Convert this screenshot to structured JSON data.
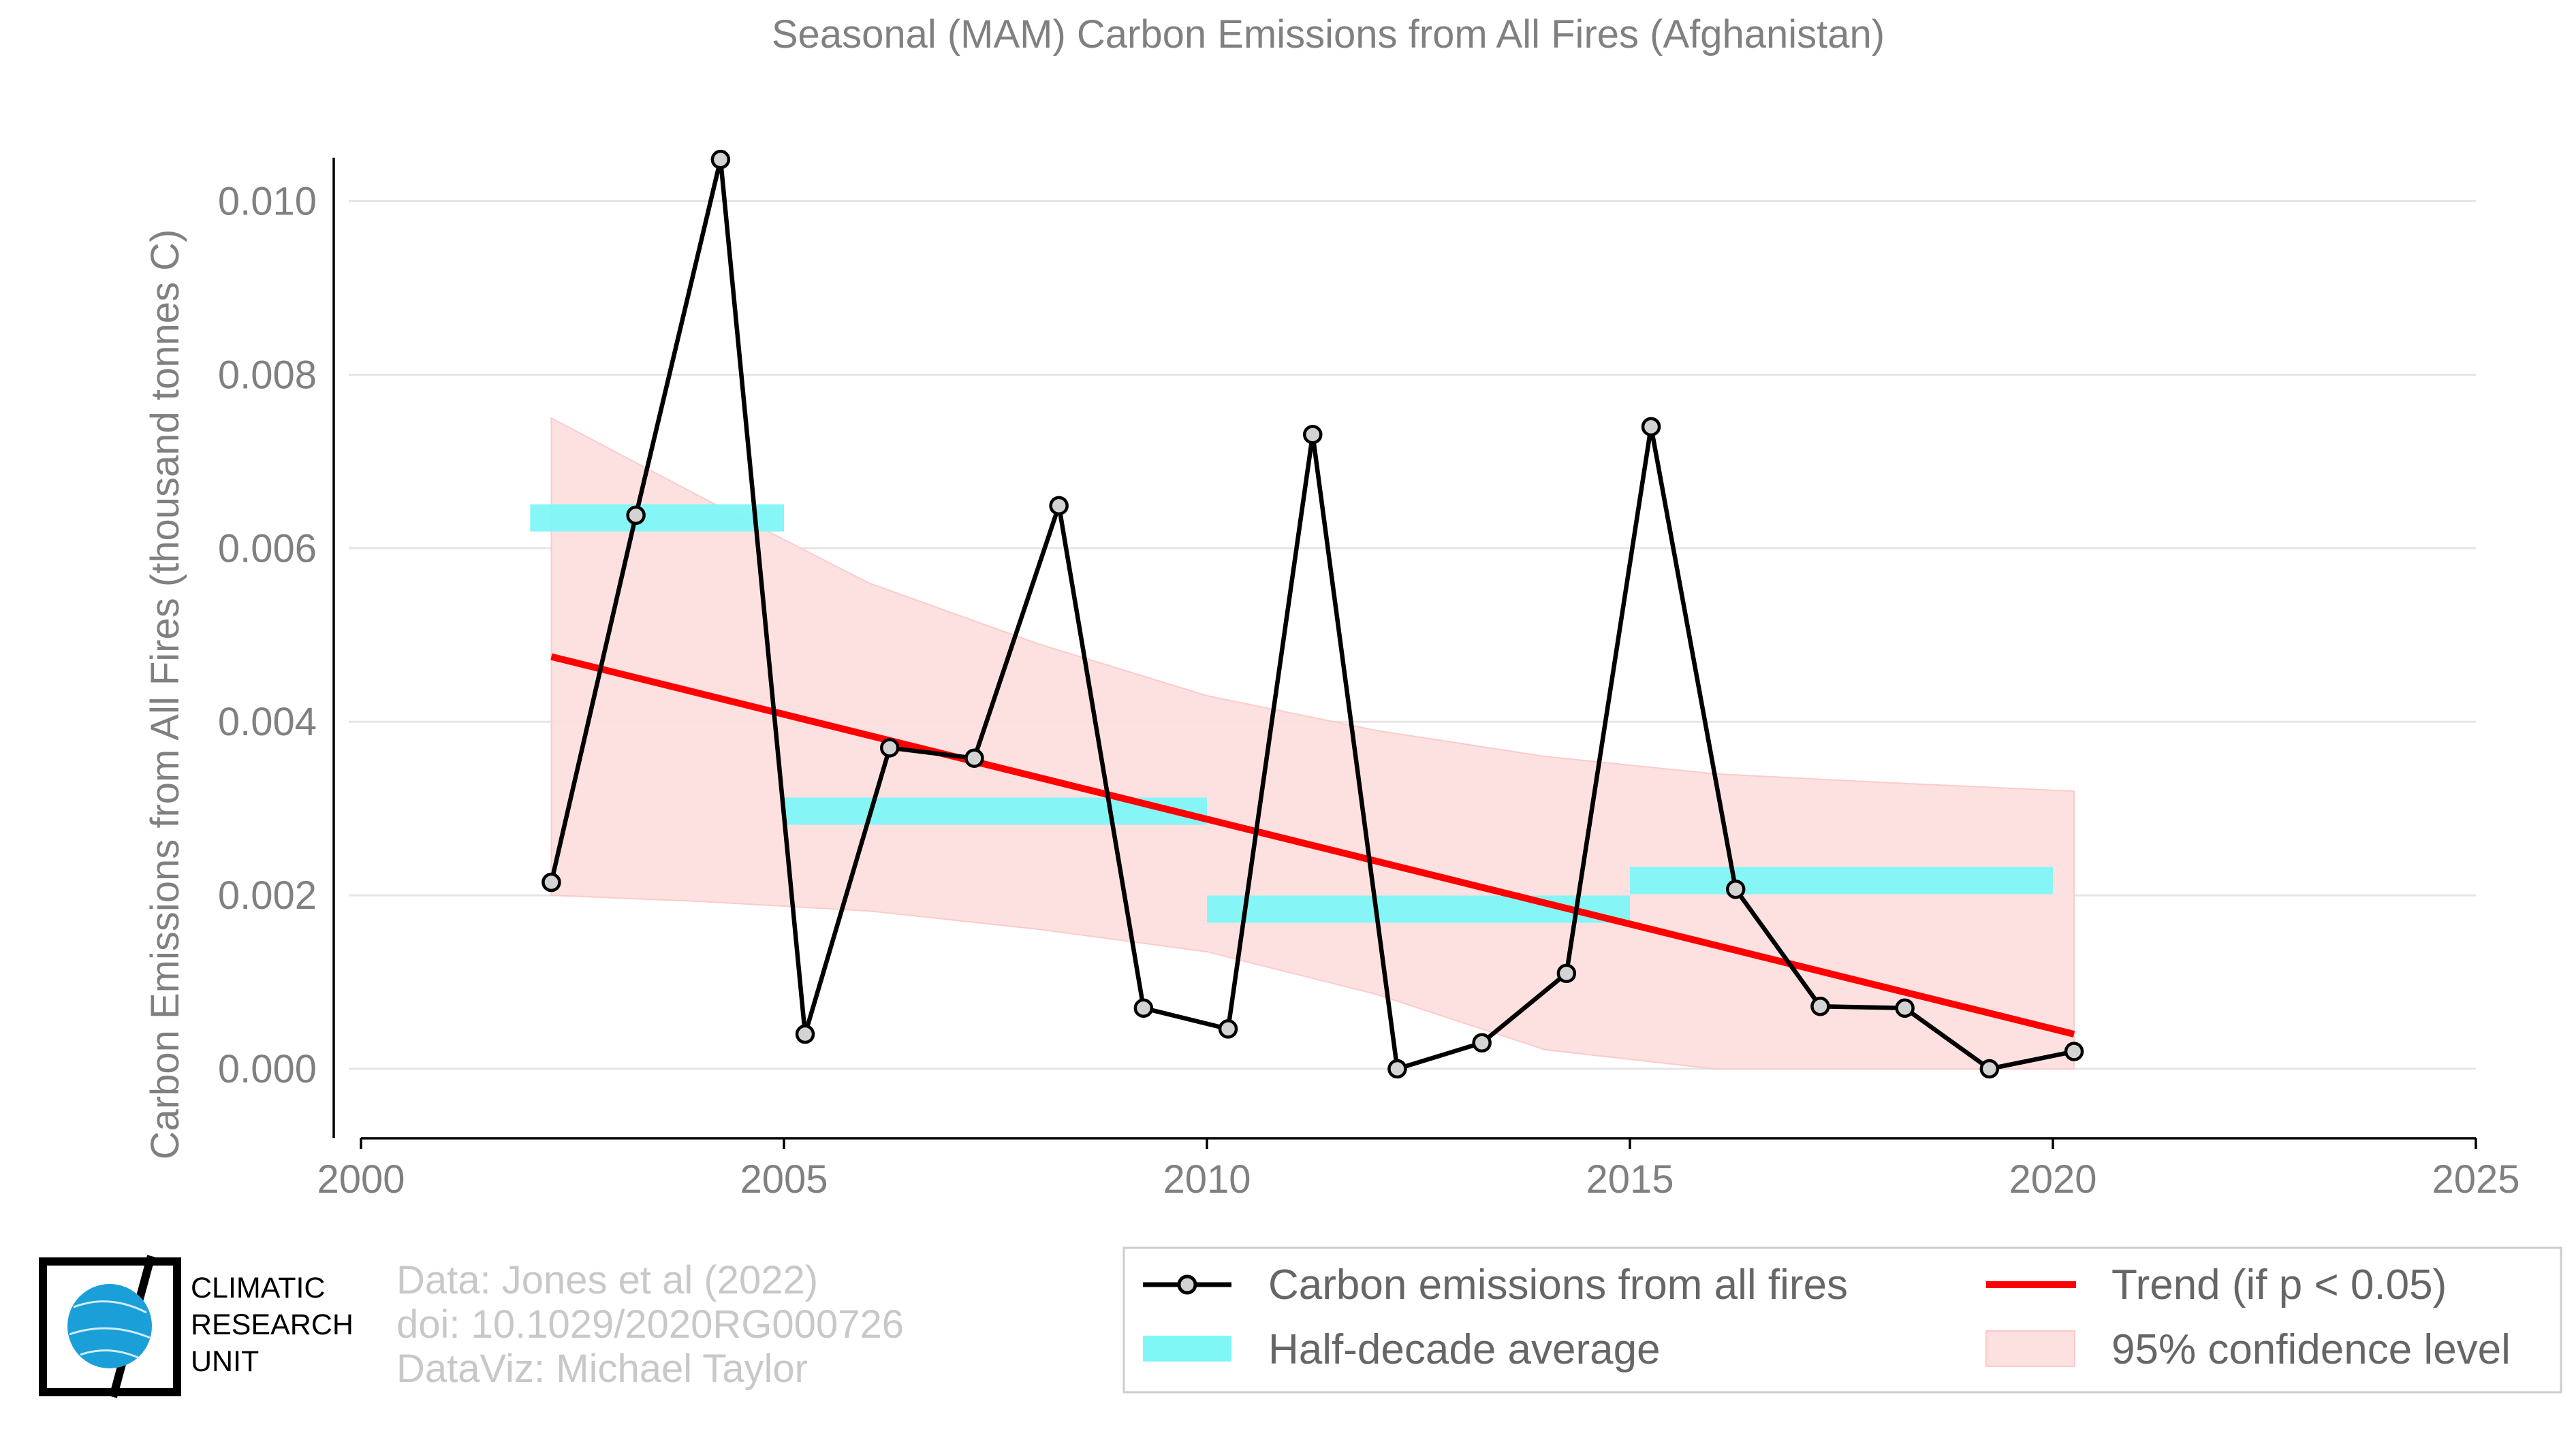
{
  "chart_data": {
    "type": "line",
    "title": "Seasonal (MAM) Carbon Emissions from All Fires (Afghanistan)",
    "ylabel": "Carbon Emissions from All Fires (thousand tonnes C)",
    "xlabel": "",
    "xlim": [
      2000,
      2025
    ],
    "ylim": [
      -0.0008,
      0.011
    ],
    "x_ticks": [
      2000,
      2005,
      2010,
      2015,
      2020,
      2025
    ],
    "y_ticks": [
      0.0,
      0.002,
      0.004,
      0.006,
      0.008,
      0.01
    ],
    "y_tick_labels": [
      "0.000",
      "0.002",
      "0.004",
      "0.006",
      "0.008",
      "0.010"
    ],
    "grid": "horizontal",
    "series": [
      {
        "name": "Carbon emissions from all fires",
        "color": "#000000",
        "x": [
          2002.25,
          2003.25,
          2004.25,
          2005.25,
          2006.25,
          2007.25,
          2008.25,
          2009.25,
          2010.25,
          2011.25,
          2012.25,
          2013.25,
          2014.25,
          2015.25,
          2016.25,
          2017.25,
          2018.25,
          2019.25,
          2020.25
        ],
        "values": [
          0.00215,
          0.00638,
          0.01048,
          0.0004,
          0.0037,
          0.00358,
          0.00649,
          0.0007,
          0.00046,
          0.00731,
          0.0,
          0.0003,
          0.0011,
          0.0074,
          0.00207,
          0.00072,
          0.0007,
          0.0,
          0.0002
        ]
      },
      {
        "name": "Half-decade average",
        "color": "#7ff6f6",
        "segments": [
          {
            "x0": 2002.0,
            "x1": 2005.0,
            "value": 0.00635
          },
          {
            "x0": 2005.0,
            "x1": 2010.0,
            "value": 0.00297
          },
          {
            "x0": 2010.0,
            "x1": 2015.0,
            "value": 0.00184
          },
          {
            "x0": 2015.0,
            "x1": 2020.0,
            "value": 0.00217
          }
        ]
      },
      {
        "name": "Trend (if p < 0.05)",
        "color": "#ff0000",
        "x": [
          2002.25,
          2020.25
        ],
        "values": [
          0.00475,
          0.0004
        ]
      },
      {
        "name": "95% confidence level",
        "color": "#fde0e0",
        "x": [
          2002.25,
          2004,
          2006,
          2008,
          2010,
          2012,
          2014,
          2016,
          2018,
          2020.25
        ],
        "upper": [
          0.0075,
          0.0066,
          0.0056,
          0.0049,
          0.0043,
          0.0039,
          0.0036,
          0.0034,
          0.0033,
          0.0032
        ],
        "lower": [
          0.002,
          0.00193,
          0.00182,
          0.00161,
          0.00135,
          0.00086,
          0.00022,
          0.0,
          0.0,
          0.0
        ]
      }
    ],
    "legend": {
      "placement": "bottom-right",
      "items": [
        {
          "label": "Carbon emissions from all fires",
          "key": "line-marker",
          "color": "#000000"
        },
        {
          "label": "Trend (if p < 0.05)",
          "key": "line",
          "color": "#ff0000"
        },
        {
          "label": "Half-decade average",
          "key": "patch",
          "color": "#7ff6f6"
        },
        {
          "label": "95% confidence level",
          "key": "patch",
          "color": "#fde0e0"
        }
      ]
    }
  },
  "credits": {
    "line1": "Data: Jones et al (2022)",
    "line2": "doi: 10.1029/2020RG000726",
    "line3": "DataViz: Michael Taylor"
  },
  "logo": {
    "line1": "CLIMATIC",
    "line2": "RESEARCH",
    "line3": "UNIT",
    "globe_color": "#1a9fd8"
  }
}
